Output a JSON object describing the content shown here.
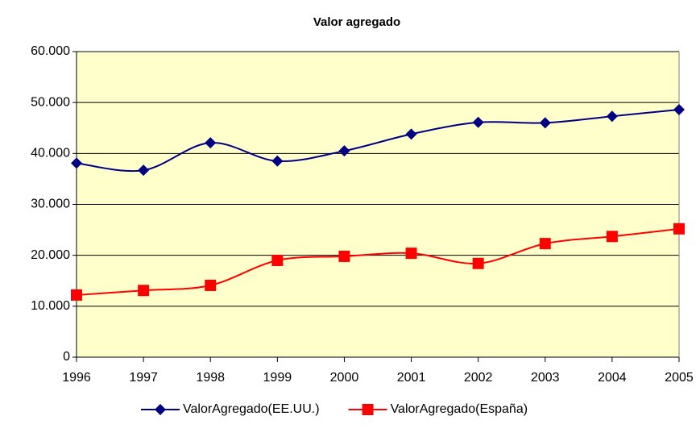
{
  "chart_data": {
    "type": "line",
    "title": "Valor agregado",
    "x": [
      1996,
      1997,
      1998,
      1999,
      2000,
      2001,
      2002,
      2003,
      2004,
      2005
    ],
    "xlim": [
      1996,
      2005
    ],
    "xticks": [
      1996,
      1997,
      1998,
      1999,
      2000,
      2001,
      2002,
      2003,
      2004,
      2005
    ],
    "ylim": [
      0,
      60000
    ],
    "yticks": [
      0,
      {
        "value": 10000,
        "label": "10.000"
      },
      {
        "value": 20000,
        "label": "20.000"
      },
      {
        "value": 30000,
        "label": "30.000"
      },
      {
        "value": 40000,
        "label": "40.000"
      },
      {
        "value": 50000,
        "label": "50.000"
      },
      {
        "value": 60000,
        "label": "60.000"
      }
    ],
    "grid": true,
    "legend": "bottom",
    "series": [
      {
        "name": "ValorAgregado(EE.UU.)",
        "color": "#000080",
        "marker": "diamond",
        "values": [
          38100,
          36700,
          42100,
          38500,
          40500,
          43800,
          46100,
          46000,
          47300,
          48600
        ]
      },
      {
        "name": "ValorAgregado(España)",
        "color": "#ff0000",
        "marker": "square",
        "values": [
          12200,
          13100,
          14100,
          19000,
          19800,
          20400,
          18400,
          22300,
          23700,
          25200
        ]
      }
    ]
  }
}
